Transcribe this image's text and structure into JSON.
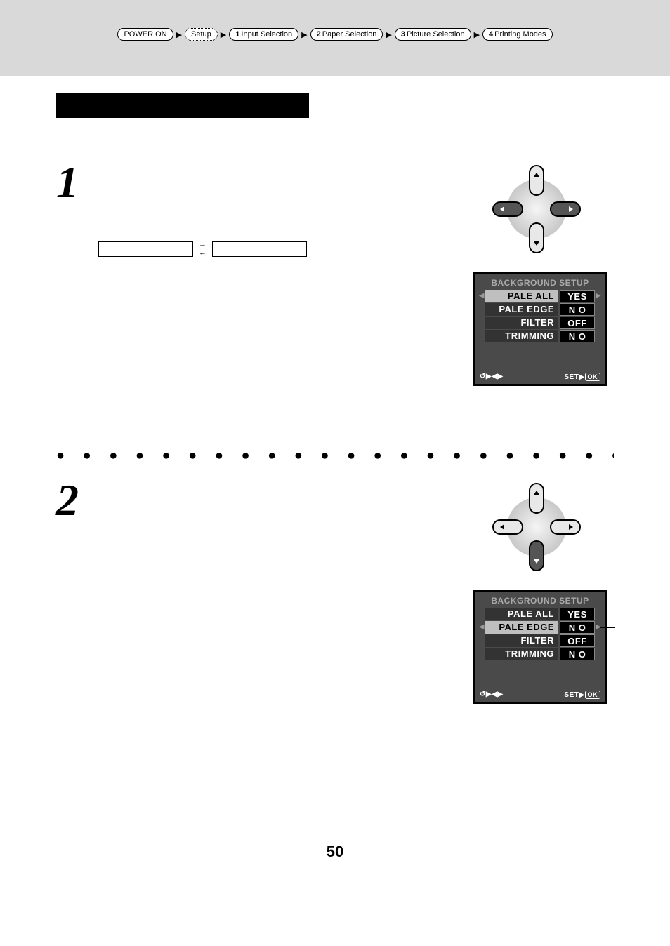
{
  "breadcrumb": {
    "items": [
      {
        "num": "",
        "label": "POWER ON"
      },
      {
        "num": "",
        "label": "Setup"
      },
      {
        "num": "1",
        "label": "Input Selection"
      },
      {
        "num": "2",
        "label": "Paper Selection"
      },
      {
        "num": "3",
        "label": "Picture Selection"
      },
      {
        "num": "4",
        "label": "Printing Modes"
      }
    ],
    "separator": "▶"
  },
  "steps": {
    "one": "1",
    "two": "2"
  },
  "screen1": {
    "title": "BACKGROUND SETUP",
    "rows": [
      {
        "label": "PALE ALL",
        "value": "YES",
        "selected": true,
        "larrow": true,
        "rarrow": true
      },
      {
        "label": "PALE EDGE",
        "value": "N O",
        "selected": false,
        "larrow": false,
        "rarrow": false
      },
      {
        "label": "FILTER",
        "value": "OFF",
        "selected": false,
        "larrow": false,
        "rarrow": false
      },
      {
        "label": "TRIMMING",
        "value": "N O",
        "selected": false,
        "larrow": false,
        "rarrow": false
      }
    ],
    "footer_left": "↺▶◀▶",
    "footer_right_text": "SET▶",
    "footer_right_pill": "OK"
  },
  "screen2": {
    "title": "BACKGROUND SETUP",
    "rows": [
      {
        "label": "PALE ALL",
        "value": "YES",
        "selected": false,
        "larrow": false,
        "rarrow": false
      },
      {
        "label": "PALE EDGE",
        "value": "N O",
        "selected": true,
        "larrow": true,
        "rarrow": true
      },
      {
        "label": "FILTER",
        "value": "OFF",
        "selected": false,
        "larrow": false,
        "rarrow": false
      },
      {
        "label": "TRIMMING",
        "value": "N O",
        "selected": false,
        "larrow": false,
        "rarrow": false
      }
    ],
    "footer_left": "↺▶◀▶",
    "footer_right_text": "SET▶",
    "footer_right_pill": "OK",
    "marker_row_index": 1
  },
  "dpad1": {
    "highlight": [
      "left",
      "right"
    ],
    "colors": {
      "base": "#d0d0d0",
      "highlight": "#4a4a4a",
      "outline": "#000"
    }
  },
  "dpad2": {
    "highlight": [
      "down"
    ],
    "colors": {
      "base": "#d0d0d0",
      "highlight": "#4a4a4a",
      "outline": "#000"
    }
  },
  "bidirectional_arrows": {
    "right": "→",
    "left": "←"
  },
  "page_number": "50",
  "colors": {
    "top_band": "#d9d9d9",
    "screen_bg": "#4a4a4a",
    "screen_row_bg": "#333333",
    "screen_row_sel": "#bfbfbf",
    "screen_val_bg": "#000000"
  }
}
